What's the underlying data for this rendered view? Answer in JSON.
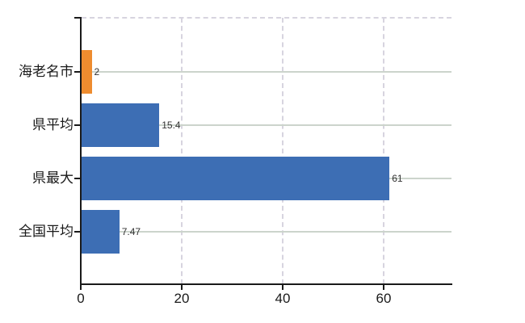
{
  "chart_data": {
    "type": "bar",
    "orientation": "horizontal",
    "categories": [
      "海老名市",
      "県平均",
      "県最大",
      "全国平均"
    ],
    "values": [
      2,
      15.4,
      61,
      7.47
    ],
    "value_labels": [
      "2",
      "15.4",
      "61",
      "7.47"
    ],
    "bar_colors": [
      "#ee8c2f",
      "#3d6eb4",
      "#3d6eb4",
      "#3d6eb4"
    ],
    "xticks": [
      "0",
      "20",
      "40",
      "60"
    ],
    "xtick_values": [
      0,
      20,
      40,
      60
    ],
    "xlim": [
      0,
      73.4
    ],
    "title": "",
    "xlabel": "",
    "ylabel": "",
    "legend": "none",
    "grid": "solid horizontal gridlines at category centers; dashed vertical gridlines at x ticks; dashed top plot border"
  },
  "colors": {
    "bar_blue": "#3d6eb4",
    "bar_orange": "#ee8c2f",
    "axis": "#1a1a1a",
    "grid_solid": "#ccd4cc",
    "grid_dashed": "#d7d4df",
    "value_label": "#333333",
    "tick_label": "#1a1a1a",
    "background": "#ffffff"
  }
}
